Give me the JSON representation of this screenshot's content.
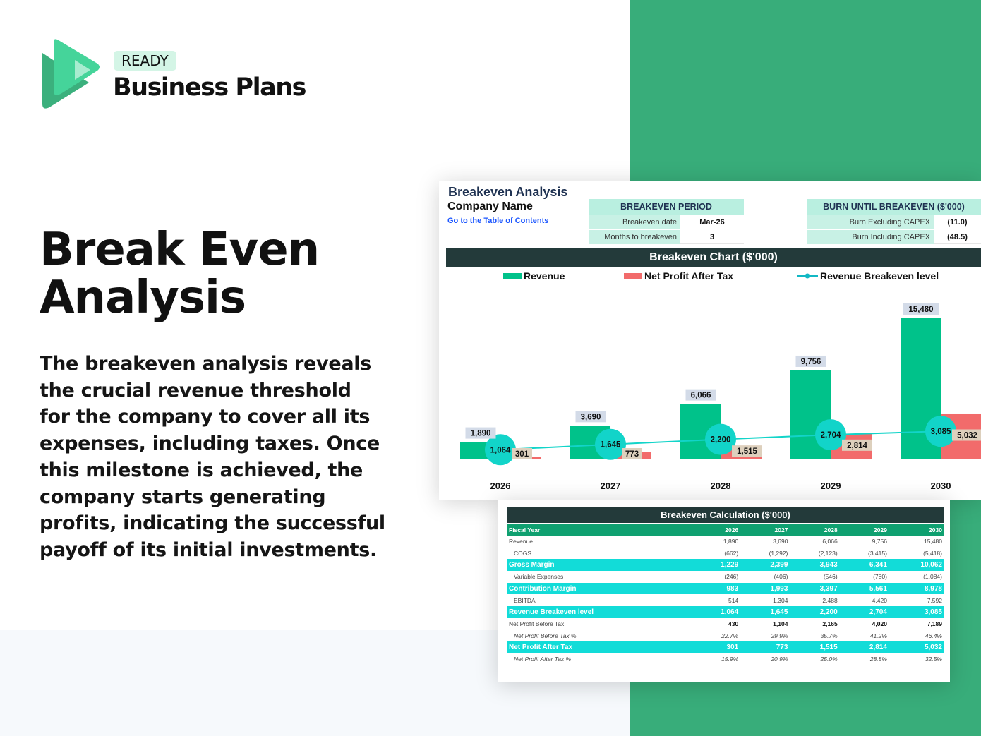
{
  "brand": {
    "badge": "READY",
    "name": "Business Plans"
  },
  "hero": {
    "title_line1": "Break Even",
    "title_line2": "Analysis",
    "description": "The breakeven analysis reveals the crucial revenue threshold for the company to cover all its expenses, including taxes. Once this milestone is achieved, the company starts generating profits, indicating the successful payoff of its initial investments."
  },
  "sheet": {
    "title": "Breakeven Analysis",
    "company": "Company Name",
    "toc_link": "Go to the Table of Contents",
    "period": {
      "header": "BREAKEVEN PERIOD",
      "rows": [
        {
          "label": "Breakeven date",
          "value": "Mar-26"
        },
        {
          "label": "Months to breakeven",
          "value": "3"
        }
      ]
    },
    "burn": {
      "header": "BURN UNTIL BREAKEVEN ($'000)",
      "rows": [
        {
          "label": "Burn Excluding CAPEX",
          "value": "(11.0)"
        },
        {
          "label": "Burn Including CAPEX",
          "value": "(48.5)"
        }
      ]
    }
  },
  "colors": {
    "revenue": "#00c28a",
    "net_profit": "#f26b6b",
    "breakeven": "#12d4c9",
    "header_dark": "#233a3a",
    "brand_green": "#38ad7a"
  },
  "chart_data": {
    "type": "bar",
    "title": "Breakeven Chart ($'000)",
    "categories": [
      "2026",
      "2027",
      "2028",
      "2029",
      "2030"
    ],
    "series": [
      {
        "name": "Revenue",
        "type": "bar",
        "values": [
          1890,
          3690,
          6066,
          9756,
          15480
        ],
        "labels": [
          "1,890",
          "3,690",
          "6,066",
          "9,756",
          "15,480"
        ]
      },
      {
        "name": "Net Profit After Tax",
        "type": "bar",
        "values": [
          301,
          773,
          1515,
          2814,
          5032
        ],
        "labels": [
          "301",
          "773",
          "1,515",
          "2,814",
          "5,032"
        ]
      },
      {
        "name": "Revenue Breakeven level",
        "type": "line",
        "values": [
          1064,
          1645,
          2200,
          2704,
          3085
        ],
        "labels": [
          "1,064",
          "1,645",
          "2,200",
          "2,704",
          "3,085"
        ]
      }
    ],
    "legend": "top",
    "grid": false
  },
  "table": {
    "title": "Breakeven Calculation ($'000)",
    "header": [
      "Fiscal Year",
      "2026",
      "2027",
      "2028",
      "2029",
      "2030"
    ],
    "rows": [
      {
        "cells": [
          "Revenue",
          "1,890",
          "3,690",
          "6,066",
          "9,756",
          "15,480"
        ],
        "style": ""
      },
      {
        "cells": [
          "COGS",
          "(662)",
          "(1,292)",
          "(2,123)",
          "(3,415)",
          "(5,418)"
        ],
        "style": "ind"
      },
      {
        "cells": [
          "Gross Margin",
          "1,229",
          "2,399",
          "3,943",
          "6,341",
          "10,062"
        ],
        "style": "hl"
      },
      {
        "cells": [
          "Variable Expenses",
          "(246)",
          "(406)",
          "(546)",
          "(780)",
          "(1,084)"
        ],
        "style": "ind"
      },
      {
        "cells": [
          "Contribution Margin",
          "983",
          "1,993",
          "3,397",
          "5,561",
          "8,978"
        ],
        "style": "hl"
      },
      {
        "cells": [
          "EBITDA",
          "514",
          "1,304",
          "2,488",
          "4,420",
          "7,592"
        ],
        "style": "ind"
      },
      {
        "cells": [
          "Revenue Breakeven level",
          "1,064",
          "1,645",
          "2,200",
          "2,704",
          "3,085"
        ],
        "style": "hl"
      },
      {
        "cells": [
          "Net Profit Before Tax",
          "430",
          "1,104",
          "2,165",
          "4,020",
          "7,189"
        ],
        "style": "bold"
      },
      {
        "cells": [
          "Net Profit Before Tax %",
          "22.7%",
          "29.9%",
          "35.7%",
          "41.2%",
          "46.4%"
        ],
        "style": "it"
      },
      {
        "cells": [
          "Net Profit After Tax",
          "301",
          "773",
          "1,515",
          "2,814",
          "5,032"
        ],
        "style": "hl"
      },
      {
        "cells": [
          "Net Profit After Tax %",
          "15.9%",
          "20.9%",
          "25.0%",
          "28.8%",
          "32.5%"
        ],
        "style": "it"
      }
    ]
  }
}
